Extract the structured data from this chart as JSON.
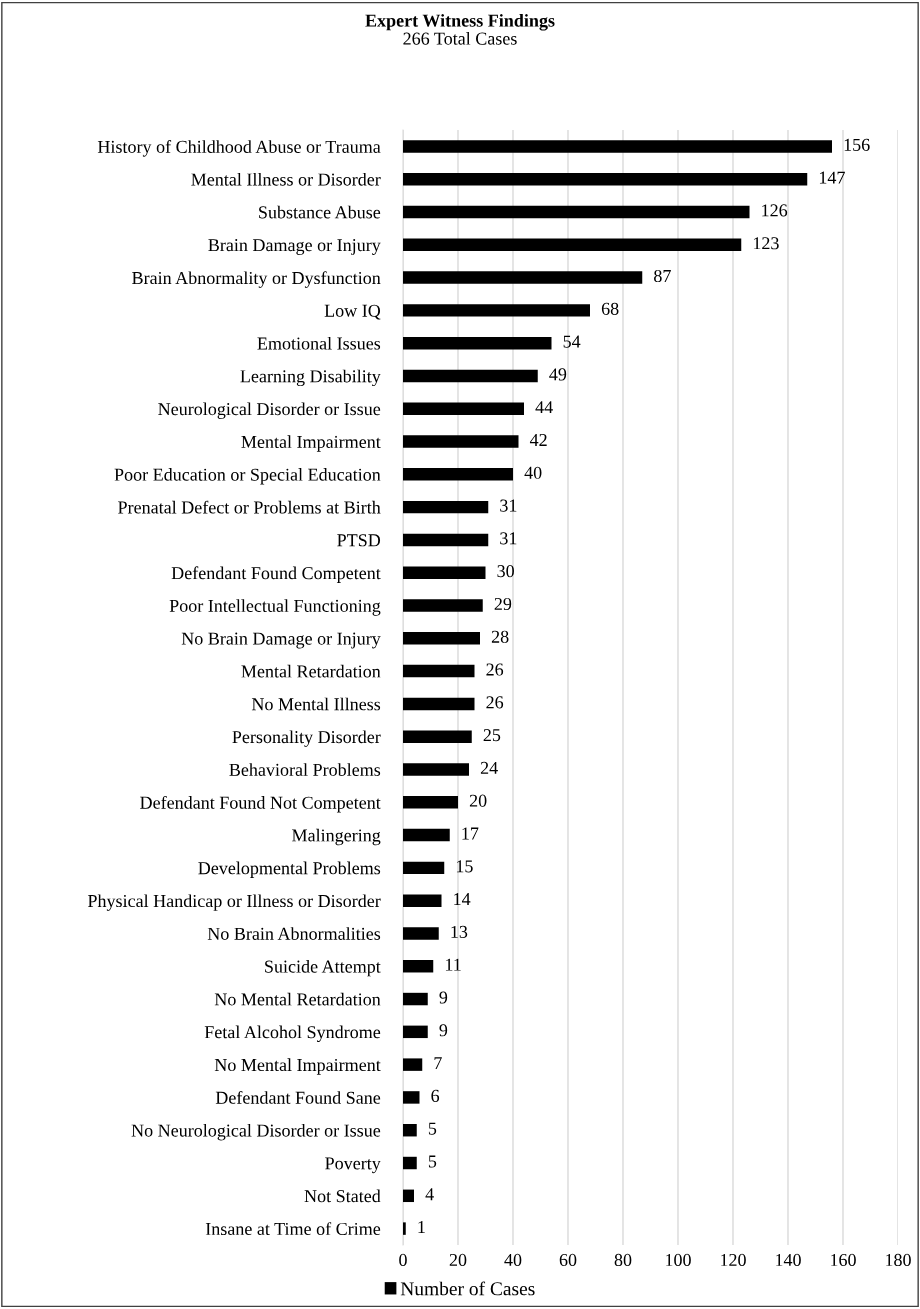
{
  "chart_data": {
    "type": "bar",
    "orientation": "horizontal",
    "title": "Expert Witness Findings",
    "subtitle": "266 Total Cases",
    "categories": [
      "History of Childhood Abuse or Trauma",
      "Mental Illness or Disorder",
      "Substance Abuse",
      "Brain Damage or Injury",
      "Brain Abnormality or Dysfunction",
      "Low IQ",
      "Emotional Issues",
      "Learning Disability",
      "Neurological Disorder or Issue",
      "Mental Impairment",
      "Poor Education or Special Education",
      "Prenatal Defect or Problems at Birth",
      "PTSD",
      "Defendant Found Competent",
      "Poor Intellectual Functioning",
      "No Brain Damage or Injury",
      "Mental Retardation",
      "No Mental Illness",
      "Personality Disorder",
      "Behavioral Problems",
      "Defendant Found Not Competent",
      "Malingering",
      "Developmental Problems",
      "Physical Handicap or Illness or Disorder",
      "No Brain Abnormalities",
      "Suicide Attempt",
      "No Mental Retardation",
      "Fetal Alcohol Syndrome",
      "No Mental Impairment",
      "Defendant Found Sane",
      "No Neurological Disorder or Issue",
      "Poverty",
      "Not Stated",
      "Insane at Time of Crime"
    ],
    "series": [
      {
        "name": "Number of Cases",
        "color": "#000000",
        "values": [
          156,
          147,
          126,
          123,
          87,
          68,
          54,
          49,
          44,
          42,
          40,
          31,
          31,
          30,
          29,
          28,
          26,
          26,
          25,
          24,
          20,
          17,
          15,
          14,
          13,
          11,
          9,
          9,
          7,
          6,
          5,
          5,
          4,
          1
        ]
      }
    ],
    "xlim": [
      0,
      180
    ],
    "xticks": [
      0,
      20,
      40,
      60,
      80,
      100,
      120,
      140,
      160,
      180
    ],
    "grid": "x",
    "data_labels": true,
    "legend": "bottom"
  }
}
